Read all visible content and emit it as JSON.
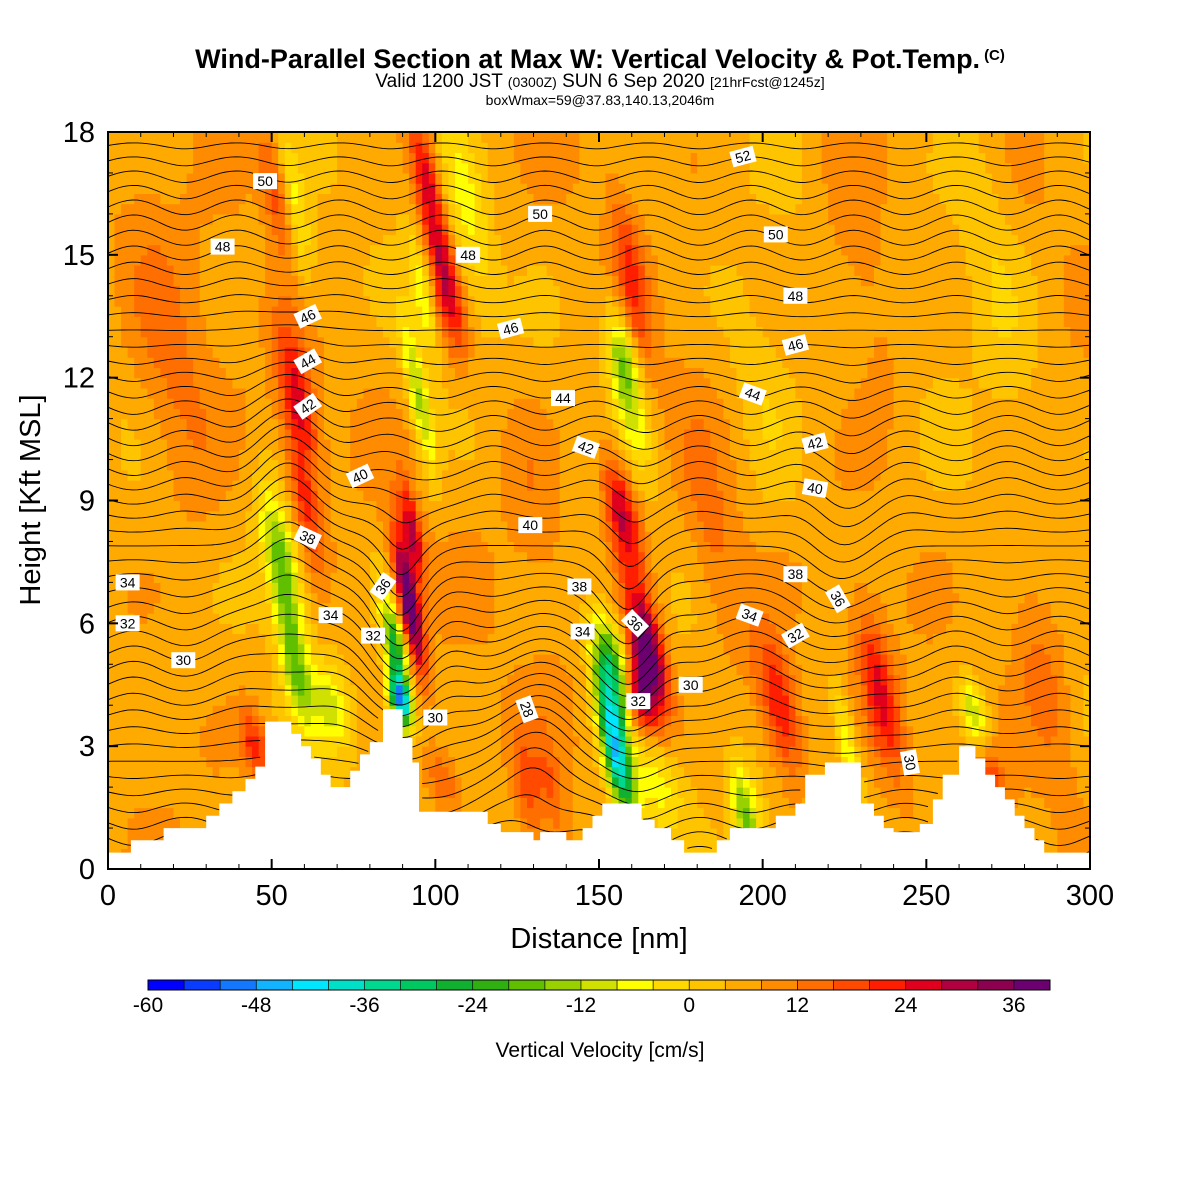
{
  "title": {
    "main": "Wind-Parallel Section at Max W: Vertical Velocity & Pot.Temp.",
    "main_tag": "(C)",
    "valid_prefix": "Valid 1200 JST",
    "valid_utc": "(0300Z)",
    "valid_date": "SUN 6 Sep 2020",
    "valid_fcst": "[21hrFcst@1245z]",
    "box": "boxWmax=59@37.83,140.13,2046m"
  },
  "chart_data": {
    "type": "heatmap",
    "xlabel": "Distance [nm]",
    "ylabel": "Height [Kft MSL]",
    "xlim": [
      0,
      300
    ],
    "ylim": [
      0,
      18
    ],
    "xticks": [
      "0",
      "50",
      "100",
      "150",
      "200",
      "250",
      "300"
    ],
    "yticks": [
      "0",
      "3",
      "6",
      "9",
      "12",
      "15",
      "18"
    ],
    "colorbar": {
      "label": "Vertical Velocity [cm/s]",
      "min": -60,
      "max": 42,
      "step": 4,
      "tick_labels": [
        "-60",
        "-48",
        "-36",
        "-24",
        "-12",
        "0",
        "12",
        "24",
        "36"
      ],
      "colors": [
        "#0000ff",
        "#0a3cff",
        "#1478ff",
        "#12b4ff",
        "#00e6ff",
        "#00e0c8",
        "#00d890",
        "#00c860",
        "#10b030",
        "#30b010",
        "#60c000",
        "#98d000",
        "#d0e000",
        "#ffff00",
        "#ffd800",
        "#ffc400",
        "#ffaa00",
        "#ff8c00",
        "#ff6e00",
        "#ff4a00",
        "#ff1e00",
        "#e0001e",
        "#b00040",
        "#8c0050",
        "#6c0070"
      ]
    },
    "terrain": [
      [
        0,
        0.4
      ],
      [
        7,
        0.4
      ],
      [
        7,
        0.7
      ],
      [
        17,
        0.7
      ],
      [
        17,
        1
      ],
      [
        30,
        1
      ],
      [
        30,
        1.3
      ],
      [
        34,
        1.3
      ],
      [
        34,
        1.6
      ],
      [
        38,
        1.6
      ],
      [
        38,
        1.9
      ],
      [
        42,
        1.9
      ],
      [
        42,
        2.2
      ],
      [
        45,
        2.2
      ],
      [
        45,
        2.5
      ],
      [
        48,
        2.5
      ],
      [
        48,
        3.6
      ],
      [
        56,
        3.6
      ],
      [
        56,
        3.3
      ],
      [
        59,
        3.3
      ],
      [
        59,
        3
      ],
      [
        62,
        3
      ],
      [
        62,
        2.7
      ],
      [
        65,
        2.7
      ],
      [
        65,
        2.3
      ],
      [
        68,
        2.3
      ],
      [
        68,
        2
      ],
      [
        74,
        2
      ],
      [
        74,
        2.4
      ],
      [
        77,
        2.4
      ],
      [
        77,
        2.8
      ],
      [
        80,
        2.8
      ],
      [
        80,
        3.1
      ],
      [
        84,
        3.1
      ],
      [
        84,
        3.9
      ],
      [
        90,
        3.9
      ],
      [
        90,
        3.2
      ],
      [
        93,
        3.2
      ],
      [
        93,
        2.6
      ],
      [
        95,
        2.6
      ],
      [
        95,
        1.4
      ],
      [
        108,
        1.4
      ],
      [
        108,
        1.4
      ],
      [
        116,
        1.4
      ],
      [
        116,
        1.1
      ],
      [
        120,
        1.1
      ],
      [
        120,
        0.9
      ],
      [
        130,
        0.9
      ],
      [
        130,
        0.7
      ],
      [
        132,
        0.7
      ],
      [
        132,
        0.9
      ],
      [
        140,
        0.9
      ],
      [
        140,
        0.7
      ],
      [
        145,
        0.7
      ],
      [
        145,
        1
      ],
      [
        148,
        1
      ],
      [
        148,
        1.3
      ],
      [
        151,
        1.3
      ],
      [
        151,
        1.6
      ],
      [
        163,
        1.6
      ],
      [
        163,
        1.2
      ],
      [
        167,
        1.2
      ],
      [
        167,
        1
      ],
      [
        172,
        1
      ],
      [
        172,
        0.7
      ],
      [
        176,
        0.7
      ],
      [
        176,
        0.4
      ],
      [
        186,
        0.4
      ],
      [
        186,
        0.7
      ],
      [
        190,
        0.7
      ],
      [
        190,
        1
      ],
      [
        200,
        1
      ],
      [
        200,
        1
      ],
      [
        204,
        1
      ],
      [
        204,
        1.3
      ],
      [
        210,
        1.3
      ],
      [
        210,
        1.6
      ],
      [
        213,
        1.6
      ],
      [
        213,
        2.3
      ],
      [
        219,
        2.3
      ],
      [
        219,
        2.6
      ],
      [
        230,
        2.6
      ],
      [
        230,
        1.6
      ],
      [
        234,
        1.6
      ],
      [
        234,
        1.3
      ],
      [
        237,
        1.3
      ],
      [
        237,
        1
      ],
      [
        240,
        1
      ],
      [
        240,
        0.9
      ],
      [
        248,
        0.9
      ],
      [
        248,
        1.1
      ],
      [
        252,
        1.1
      ],
      [
        252,
        1.7
      ],
      [
        255,
        1.7
      ],
      [
        255,
        2.3
      ],
      [
        260,
        2.3
      ],
      [
        260,
        3
      ],
      [
        265,
        3
      ],
      [
        265,
        2.7
      ],
      [
        268,
        2.7
      ],
      [
        268,
        2.3
      ],
      [
        271,
        2.3
      ],
      [
        271,
        2
      ],
      [
        274,
        2
      ],
      [
        274,
        1.7
      ],
      [
        277,
        1.7
      ],
      [
        277,
        1.3
      ],
      [
        280,
        1.3
      ],
      [
        280,
        1
      ],
      [
        283,
        1
      ],
      [
        283,
        0.7
      ],
      [
        286,
        0.7
      ],
      [
        286,
        0.4
      ],
      [
        300,
        0.4
      ]
    ],
    "velocity_features": [
      {
        "x": 45,
        "y": 3.0,
        "w": 4,
        "h": 0.9,
        "v": 16
      },
      {
        "x": 53,
        "y": 7.5,
        "w": 5,
        "h": 1.8,
        "v": -24
      },
      {
        "x": 57,
        "y": 5.0,
        "w": 4,
        "h": 1.5,
        "v": -20
      },
      {
        "x": 58,
        "y": 11.5,
        "w": 5,
        "h": 1.8,
        "v": 20
      },
      {
        "x": 60,
        "y": 9.0,
        "w": 4,
        "h": 1.6,
        "v": 14
      },
      {
        "x": 52,
        "y": 16.5,
        "w": 4,
        "h": 1.5,
        "v": 16
      },
      {
        "x": 57,
        "y": 16.0,
        "w": 4,
        "h": 1.8,
        "v": -14
      },
      {
        "x": 68,
        "y": 4.0,
        "w": 6,
        "h": 1.0,
        "v": -14
      },
      {
        "x": 88,
        "y": 5.2,
        "w": 3,
        "h": 1.4,
        "v": -34
      },
      {
        "x": 89,
        "y": 4.1,
        "w": 3,
        "h": 0.6,
        "v": -44
      },
      {
        "x": 92,
        "y": 6.5,
        "w": 3,
        "h": 1.6,
        "v": 38
      },
      {
        "x": 93,
        "y": 8.2,
        "w": 3,
        "h": 1.2,
        "v": 22
      },
      {
        "x": 95,
        "y": 11.5,
        "w": 3,
        "h": 1.8,
        "v": -20
      },
      {
        "x": 96,
        "y": 14.0,
        "w": 3,
        "h": 1.5,
        "v": -12
      },
      {
        "x": 98,
        "y": 16.5,
        "w": 4,
        "h": 2.0,
        "v": 22
      },
      {
        "x": 104,
        "y": 14.0,
        "w": 4,
        "h": 1.5,
        "v": 18
      },
      {
        "x": 110,
        "y": 16.0,
        "w": 6,
        "h": 2.5,
        "v": -10
      },
      {
        "x": 102,
        "y": 2.2,
        "w": 5,
        "h": 0.8,
        "v": 10
      },
      {
        "x": 128,
        "y": 2.0,
        "w": 4,
        "h": 1.5,
        "v": 10
      },
      {
        "x": 135,
        "y": 2.0,
        "w": 4,
        "h": 1.5,
        "v": 8
      },
      {
        "x": 155,
        "y": 3.0,
        "w": 4,
        "h": 1.8,
        "v": -48
      },
      {
        "x": 154,
        "y": 5.0,
        "w": 5,
        "h": 1.2,
        "v": -28
      },
      {
        "x": 165,
        "y": 5.2,
        "w": 5,
        "h": 1.5,
        "v": 38
      },
      {
        "x": 162,
        "y": 4.2,
        "w": 4,
        "h": 0.9,
        "v": 22
      },
      {
        "x": 157,
        "y": 8.7,
        "w": 5,
        "h": 1.5,
        "v": 24
      },
      {
        "x": 160,
        "y": 11.0,
        "w": 5,
        "h": 1.5,
        "v": -10
      },
      {
        "x": 157,
        "y": 12.5,
        "w": 4,
        "h": 1.2,
        "v": -20
      },
      {
        "x": 160,
        "y": 14.5,
        "w": 4,
        "h": 2.0,
        "v": 14
      },
      {
        "x": 168,
        "y": 2.0,
        "w": 8,
        "h": 1.2,
        "v": -12
      },
      {
        "x": 195,
        "y": 1.3,
        "w": 4,
        "h": 1.2,
        "v": -22
      },
      {
        "x": 205,
        "y": 4.0,
        "w": 6,
        "h": 1.8,
        "v": 20
      },
      {
        "x": 185,
        "y": 8.0,
        "w": 8,
        "h": 3.0,
        "v": 8
      },
      {
        "x": 200,
        "y": 11.5,
        "w": 10,
        "h": 3.0,
        "v": -6
      },
      {
        "x": 226,
        "y": 3.0,
        "w": 3,
        "h": 1.5,
        "v": -14
      },
      {
        "x": 236,
        "y": 4.3,
        "w": 5,
        "h": 2.0,
        "v": 18
      },
      {
        "x": 265,
        "y": 3.6,
        "w": 4,
        "h": 1.0,
        "v": -22
      },
      {
        "x": 268,
        "y": 2.3,
        "w": 5,
        "h": 1.2,
        "v": 16
      },
      {
        "x": 285,
        "y": 5.0,
        "w": 8,
        "h": 3.0,
        "v": 8
      },
      {
        "x": 270,
        "y": 15.0,
        "w": 10,
        "h": 4.0,
        "v": -6
      },
      {
        "x": 20,
        "y": 12.0,
        "w": 12,
        "h": 4.0,
        "v": 8
      },
      {
        "x": 130,
        "y": 9.0,
        "w": 10,
        "h": 3.0,
        "v": 6
      },
      {
        "x": 230,
        "y": 15.0,
        "w": 10,
        "h": 4.0,
        "v": 6
      }
    ],
    "contour_levels": [
      28,
      30,
      32,
      34,
      36,
      38,
      40,
      42,
      44,
      46,
      48,
      50,
      52
    ],
    "contour_labels": [
      {
        "text": "50",
        "x": 48,
        "y": 16.8,
        "angle": 0
      },
      {
        "text": "48",
        "x": 35,
        "y": 15.2,
        "angle": 0
      },
      {
        "text": "46",
        "x": 61,
        "y": 13.5,
        "angle": 25
      },
      {
        "text": "44",
        "x": 61,
        "y": 12.4,
        "angle": 30
      },
      {
        "text": "42",
        "x": 61,
        "y": 11.3,
        "angle": 35
      },
      {
        "text": "40",
        "x": 77,
        "y": 9.6,
        "angle": 25
      },
      {
        "text": "38",
        "x": 61,
        "y": 8.1,
        "angle": -25
      },
      {
        "text": "34",
        "x": 6,
        "y": 7.0,
        "angle": 0
      },
      {
        "text": "32",
        "x": 6,
        "y": 6.0,
        "angle": 0
      },
      {
        "text": "30",
        "x": 23,
        "y": 5.1,
        "angle": 0
      },
      {
        "text": "34",
        "x": 68,
        "y": 6.2,
        "angle": 0
      },
      {
        "text": "36",
        "x": 84,
        "y": 6.9,
        "angle": 55
      },
      {
        "text": "32",
        "x": 81,
        "y": 5.7,
        "angle": 0
      },
      {
        "text": "30",
        "x": 100,
        "y": 3.7,
        "angle": 0
      },
      {
        "text": "50",
        "x": 132,
        "y": 16.0,
        "angle": 0
      },
      {
        "text": "48",
        "x": 110,
        "y": 15.0,
        "angle": 0
      },
      {
        "text": "46",
        "x": 123,
        "y": 13.2,
        "angle": 15
      },
      {
        "text": "44",
        "x": 139,
        "y": 11.5,
        "angle": 0
      },
      {
        "text": "42",
        "x": 146,
        "y": 10.3,
        "angle": -20
      },
      {
        "text": "40",
        "x": 129,
        "y": 8.4,
        "angle": 0
      },
      {
        "text": "38",
        "x": 144,
        "y": 6.9,
        "angle": 0
      },
      {
        "text": "34",
        "x": 145,
        "y": 5.8,
        "angle": 0
      },
      {
        "text": "36",
        "x": 161,
        "y": 6.0,
        "angle": -45
      },
      {
        "text": "32",
        "x": 162,
        "y": 4.1,
        "angle": 0
      },
      {
        "text": "30",
        "x": 178,
        "y": 4.5,
        "angle": 0
      },
      {
        "text": "28",
        "x": 128,
        "y": 3.9,
        "angle": -70
      },
      {
        "text": "52",
        "x": 194,
        "y": 17.4,
        "angle": 15
      },
      {
        "text": "50",
        "x": 204,
        "y": 15.5,
        "angle": 0
      },
      {
        "text": "48",
        "x": 210,
        "y": 14.0,
        "angle": 0
      },
      {
        "text": "46",
        "x": 210,
        "y": 12.8,
        "angle": 15
      },
      {
        "text": "44",
        "x": 197,
        "y": 11.6,
        "angle": -20
      },
      {
        "text": "42",
        "x": 216,
        "y": 10.4,
        "angle": 15
      },
      {
        "text": "40",
        "x": 216,
        "y": 9.3,
        "angle": -10
      },
      {
        "text": "38",
        "x": 210,
        "y": 7.2,
        "angle": 0
      },
      {
        "text": "36",
        "x": 223,
        "y": 6.6,
        "angle": -60
      },
      {
        "text": "34",
        "x": 196,
        "y": 6.2,
        "angle": -20
      },
      {
        "text": "32",
        "x": 210,
        "y": 5.7,
        "angle": 30
      },
      {
        "text": "30",
        "x": 245,
        "y": 2.6,
        "angle": -80
      }
    ]
  }
}
